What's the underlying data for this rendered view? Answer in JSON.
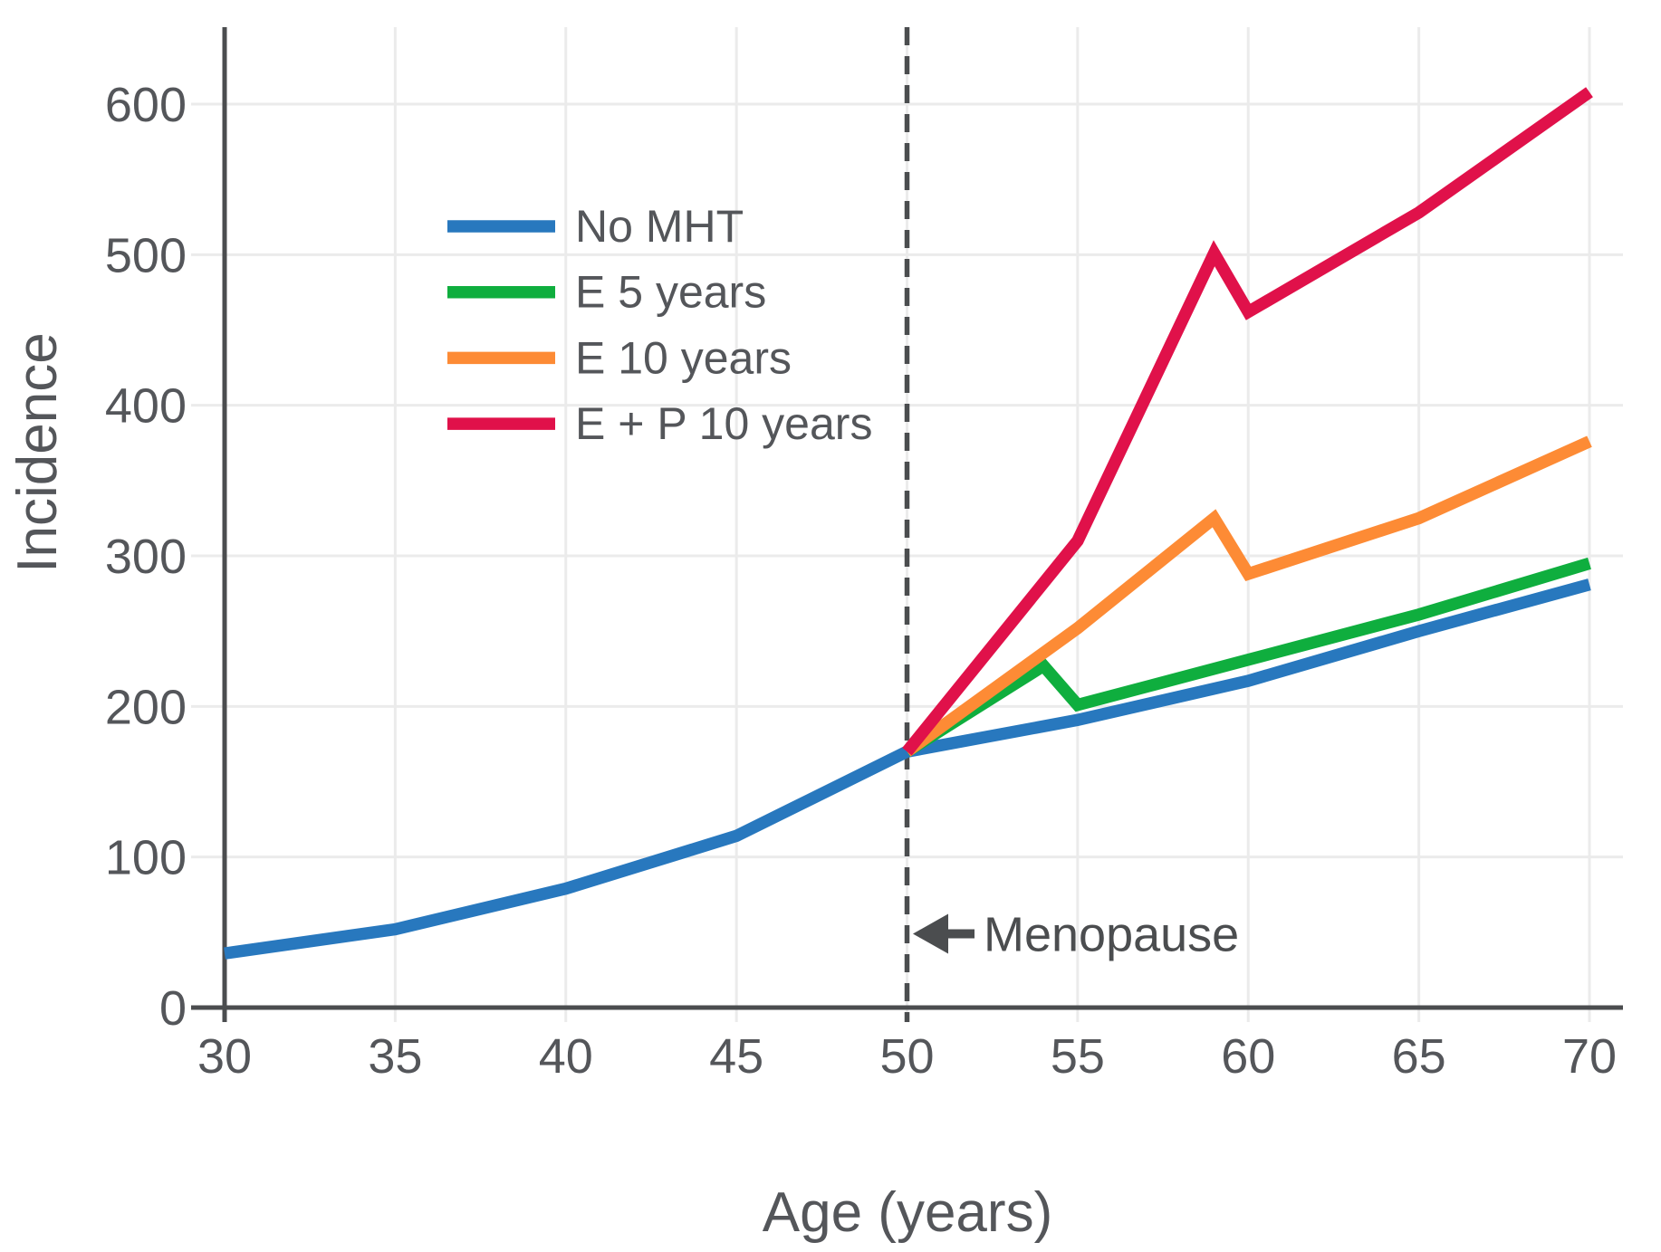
{
  "figure": {
    "background": "#ffffff",
    "text_color": "#54565a",
    "axis_color": "#4b4d4f",
    "grid_color": "#ebebeb"
  },
  "chart_data": {
    "type": "line",
    "title": "",
    "xlabel": "Age (years)",
    "ylabel": "Incidence",
    "xlim": [
      30,
      70
    ],
    "ylim": [
      0,
      650
    ],
    "x_ticks": [
      30,
      35,
      40,
      45,
      50,
      55,
      60,
      65,
      70
    ],
    "y_ticks": [
      0,
      100,
      200,
      300,
      400,
      500,
      600
    ],
    "grid": true,
    "legend_position": "upper-left-inside",
    "series": [
      {
        "name": "No MHT",
        "color": "#2878be",
        "points": [
          [
            30,
            36
          ],
          [
            35,
            52
          ],
          [
            40,
            79
          ],
          [
            45,
            114
          ],
          [
            50,
            170
          ],
          [
            55,
            191
          ],
          [
            60,
            217
          ],
          [
            65,
            250
          ],
          [
            70,
            281
          ]
        ]
      },
      {
        "name": "E 5 years",
        "color": "#0fae3e",
        "points": [
          [
            50,
            170
          ],
          [
            54,
            227
          ],
          [
            55,
            201
          ],
          [
            60,
            231
          ],
          [
            65,
            261
          ],
          [
            70,
            295
          ]
        ]
      },
      {
        "name": "E 10 years",
        "color": "#fd8b35",
        "points": [
          [
            50,
            170
          ],
          [
            55,
            252
          ],
          [
            59,
            325
          ],
          [
            60,
            288
          ],
          [
            65,
            325
          ],
          [
            70,
            376
          ]
        ]
      },
      {
        "name": "E + P 10 years",
        "color": "#e0114a",
        "points": [
          [
            50,
            170
          ],
          [
            55,
            310
          ],
          [
            59,
            501
          ],
          [
            60,
            462
          ],
          [
            65,
            528
          ],
          [
            70,
            608
          ]
        ]
      }
    ],
    "annotations": [
      {
        "type": "vline-dashed",
        "x": 50
      },
      {
        "type": "arrow-label",
        "text": "Menopause",
        "x": 50,
        "y": 49,
        "direction": "left"
      }
    ]
  }
}
